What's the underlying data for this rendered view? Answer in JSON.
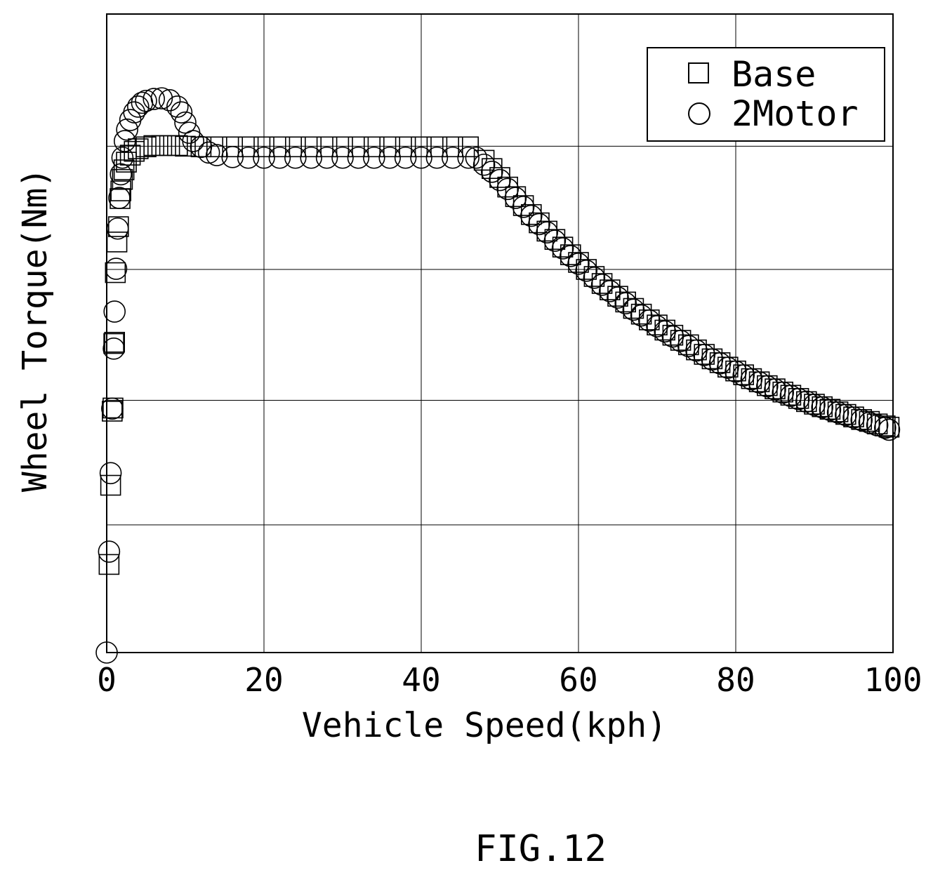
{
  "figure_label": "FIG.12",
  "chart_data": {
    "type": "scatter",
    "xlabel": "Vehicle Speed(kph)",
    "ylabel": "Wheel Torque(Nm)",
    "xlim": [
      0,
      100
    ],
    "x_ticks": [
      0,
      20,
      40,
      60,
      80,
      100
    ],
    "y_tick_labels_shown": false,
    "grid": true,
    "legend_position": "top-right",
    "series": [
      {
        "name": "Base",
        "marker": "square",
        "x": [
          0.3,
          0.5,
          0.7,
          0.8,
          0.9,
          1.0,
          1.1,
          1.3,
          1.5,
          1.7,
          1.8,
          2.0,
          2.2,
          2.5,
          3.0,
          3.5,
          4.0,
          5,
          6,
          7,
          8,
          9,
          10,
          12,
          14,
          16,
          18,
          20,
          22,
          24,
          26,
          28,
          30,
          32,
          34,
          36,
          38,
          40,
          42,
          44,
          46,
          48,
          49,
          50,
          51,
          52,
          53,
          54,
          55,
          56,
          57,
          58,
          59,
          60,
          61,
          62,
          63,
          64,
          65,
          66,
          67,
          68,
          69,
          70,
          71,
          72,
          73,
          74,
          75,
          76,
          77,
          78,
          79,
          80,
          81,
          82,
          83,
          84,
          85,
          86,
          87,
          88,
          89,
          90,
          91,
          92,
          93,
          94,
          95,
          96,
          97,
          98,
          99,
          99.5
        ],
        "y": [
          13.8,
          26.2,
          37.8,
          38.3,
          48.4,
          48.6,
          59.5,
          64.3,
          66.7,
          71.1,
          72.3,
          74.1,
          75.6,
          76.8,
          77.9,
          78.5,
          78.9,
          79.2,
          79.4,
          79.4,
          79.4,
          79.4,
          79.3,
          79.2,
          79.2,
          79.2,
          79.2,
          79.2,
          79.2,
          79.2,
          79.2,
          79.2,
          79.2,
          79.2,
          79.2,
          79.2,
          79.2,
          79.2,
          79.2,
          79.2,
          79.2,
          77.1,
          75.8,
          74.4,
          72.9,
          71.4,
          70.0,
          68.6,
          67.3,
          66.0,
          64.7,
          63.5,
          62.3,
          61.1,
          60.0,
          58.9,
          57.8,
          56.8,
          55.8,
          54.9,
          53.9,
          53.0,
          52.1,
          51.3,
          50.5,
          49.7,
          48.9,
          48.2,
          47.4,
          46.7,
          46.0,
          45.4,
          44.7,
          44.1,
          43.5,
          42.9,
          42.4,
          41.8,
          41.3,
          40.8,
          40.3,
          39.8,
          39.3,
          38.9,
          38.5,
          38.1,
          37.7,
          37.3,
          36.9,
          36.5,
          36.2,
          35.8,
          35.5,
          35.3
        ]
      },
      {
        "name": "2Motor",
        "marker": "circle",
        "x": [
          0.0,
          0.3,
          0.5,
          0.7,
          0.9,
          1.0,
          1.2,
          1.4,
          1.6,
          1.8,
          2.0,
          2.3,
          2.6,
          3.0,
          3.5,
          4.0,
          4.5,
          5,
          6,
          7,
          8,
          9,
          9.5,
          10,
          10.5,
          11,
          12,
          13,
          14,
          16,
          18,
          20,
          22,
          24,
          26,
          28,
          30,
          32,
          34,
          36,
          38,
          40,
          42,
          44,
          46,
          47,
          48,
          49,
          50,
          51,
          52,
          53,
          54,
          55,
          56,
          57,
          58,
          59,
          60,
          61,
          62,
          63,
          64,
          65,
          66,
          67,
          68,
          69,
          70,
          71,
          72,
          73,
          74,
          75,
          76,
          77,
          78,
          79,
          80,
          81,
          82,
          83,
          84,
          85,
          86,
          87,
          88,
          89,
          90,
          91,
          92,
          93,
          94,
          95,
          96,
          97,
          98,
          99,
          99.5
        ],
        "y": [
          0.0,
          15.8,
          28.1,
          38.2,
          47.6,
          53.4,
          60.1,
          66.4,
          71.2,
          74.9,
          77.5,
          80.1,
          81.9,
          83.4,
          84.6,
          85.5,
          86.1,
          86.4,
          86.7,
          86.8,
          86.5,
          85.5,
          84.6,
          83.0,
          81.4,
          80.1,
          79.2,
          78.3,
          77.9,
          77.6,
          77.5,
          77.5,
          77.5,
          77.5,
          77.5,
          77.5,
          77.5,
          77.5,
          77.5,
          77.5,
          77.5,
          77.5,
          77.5,
          77.5,
          77.5,
          77.5,
          76.4,
          75.3,
          74.0,
          72.6,
          71.2,
          69.8,
          68.4,
          67.1,
          65.8,
          64.5,
          63.3,
          62.1,
          60.9,
          59.8,
          58.7,
          57.6,
          56.6,
          55.6,
          54.7,
          53.7,
          52.8,
          52.0,
          51.1,
          50.3,
          49.5,
          48.8,
          48.0,
          47.3,
          46.6,
          45.9,
          45.3,
          44.6,
          44.0,
          43.4,
          42.8,
          42.3,
          41.7,
          41.2,
          40.7,
          40.2,
          39.7,
          39.3,
          38.8,
          38.4,
          38.0,
          37.6,
          37.2,
          36.8,
          36.4,
          36.0,
          35.6,
          35.2,
          34.9
        ]
      }
    ]
  }
}
